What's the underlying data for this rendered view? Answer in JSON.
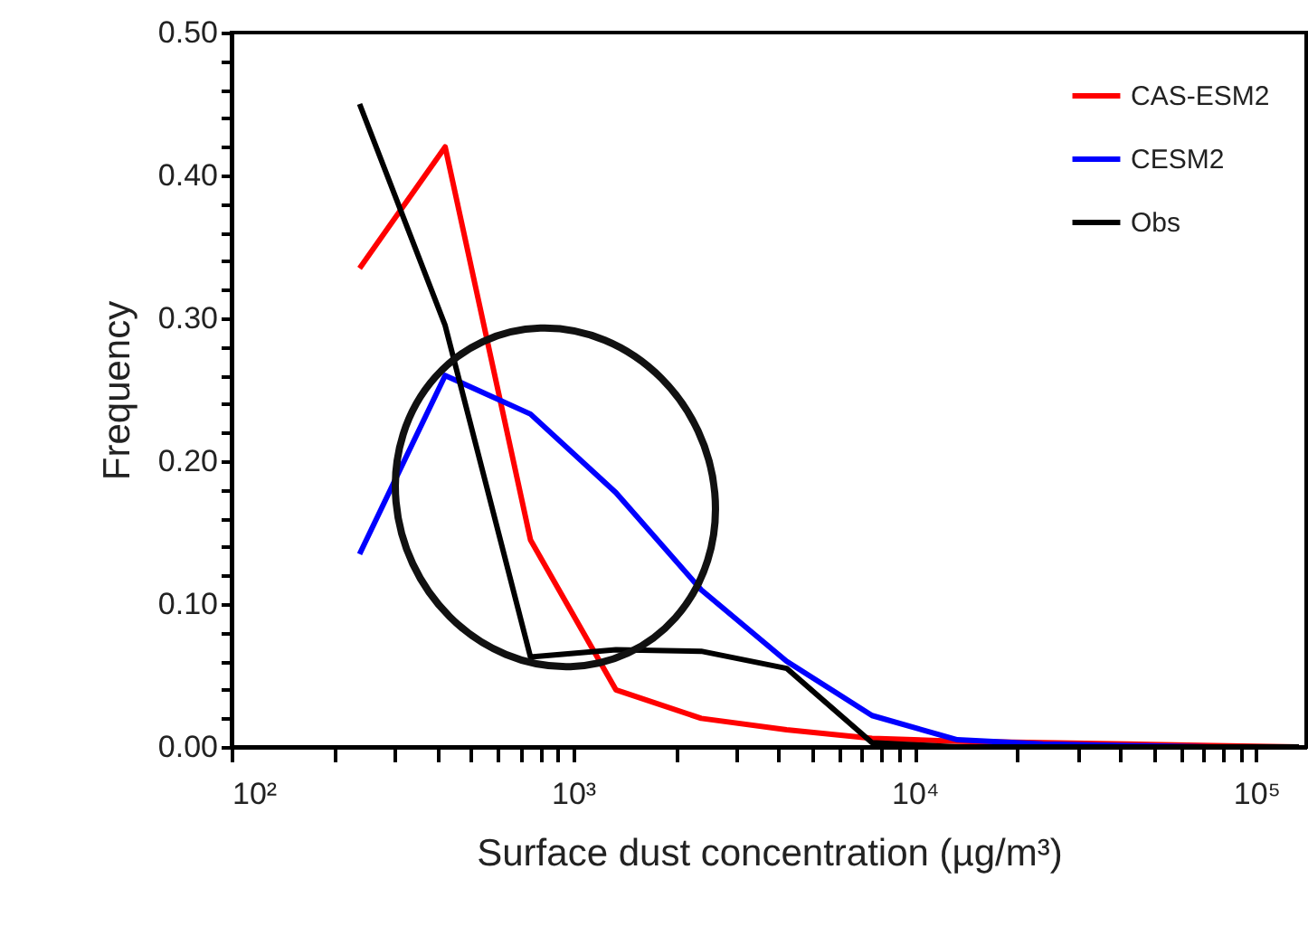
{
  "chart_data": {
    "type": "line",
    "xlabel": "Surface dust concentration (µg/m³)",
    "ylabel": "Frequency",
    "x": [
      237,
      422,
      750,
      1334,
      2371,
      4217,
      7499,
      13335,
      23714,
      42170,
      74989,
      133352
    ],
    "series": [
      {
        "name": "CAS-ESM2",
        "color": "#ff0000",
        "values": [
          0.335,
          0.42,
          0.145,
          0.04,
          0.02,
          0.012,
          0.006,
          0.004,
          0.003,
          0.002,
          0.001,
          0
        ]
      },
      {
        "name": "CESM2",
        "color": "#0000ff",
        "values": [
          0.135,
          0.26,
          0.233,
          0.178,
          0.11,
          0.06,
          0.022,
          0.005,
          0.002,
          0.001,
          0,
          0
        ]
      },
      {
        "name": "Obs",
        "color": "#000000",
        "values": [
          0.45,
          0.295,
          0.063,
          0.068,
          0.067,
          0.055,
          0.003,
          0,
          0,
          0,
          0,
          0
        ]
      }
    ],
    "log": "x",
    "xlim": [
      100,
      140000
    ],
    "ylim": [
      0,
      0.5
    ],
    "xticks": [
      {
        "value": 100,
        "label": "10²"
      },
      {
        "value": 200,
        "label": null
      },
      {
        "value": 300,
        "label": null
      },
      {
        "value": 400,
        "label": null
      },
      {
        "value": 500,
        "label": null
      },
      {
        "value": 600,
        "label": null
      },
      {
        "value": 700,
        "label": null
      },
      {
        "value": 800,
        "label": null
      },
      {
        "value": 900,
        "label": null
      },
      {
        "value": 1000,
        "label": "10³"
      },
      {
        "value": 2000,
        "label": null
      },
      {
        "value": 3000,
        "label": null
      },
      {
        "value": 4000,
        "label": null
      },
      {
        "value": 5000,
        "label": null
      },
      {
        "value": 6000,
        "label": null
      },
      {
        "value": 7000,
        "label": null
      },
      {
        "value": 8000,
        "label": null
      },
      {
        "value": 9000,
        "label": null
      },
      {
        "value": 10000,
        "label": "10⁴"
      },
      {
        "value": 20000,
        "label": null
      },
      {
        "value": 30000,
        "label": null
      },
      {
        "value": 40000,
        "label": null
      },
      {
        "value": 50000,
        "label": null
      },
      {
        "value": 60000,
        "label": null
      },
      {
        "value": 70000,
        "label": null
      },
      {
        "value": 80000,
        "label": null
      },
      {
        "value": 90000,
        "label": null
      },
      {
        "value": 100000,
        "label": "10⁵"
      }
    ],
    "yticks": [
      {
        "value": 0,
        "label": "0.00"
      },
      {
        "value": 0.02,
        "label": null
      },
      {
        "value": 0.04,
        "label": null
      },
      {
        "value": 0.06,
        "label": null
      },
      {
        "value": 0.08,
        "label": null
      },
      {
        "value": 0.1,
        "label": "0.10"
      },
      {
        "value": 0.12,
        "label": null
      },
      {
        "value": 0.14,
        "label": null
      },
      {
        "value": 0.16,
        "label": null
      },
      {
        "value": 0.18,
        "label": null
      },
      {
        "value": 0.2,
        "label": "0.20"
      },
      {
        "value": 0.22,
        "label": null
      },
      {
        "value": 0.24,
        "label": null
      },
      {
        "value": 0.26,
        "label": null
      },
      {
        "value": 0.28,
        "label": null
      },
      {
        "value": 0.3,
        "label": "0.30"
      },
      {
        "value": 0.32,
        "label": null
      },
      {
        "value": 0.34,
        "label": null
      },
      {
        "value": 0.36,
        "label": null
      },
      {
        "value": 0.38,
        "label": null
      },
      {
        "value": 0.4,
        "label": "0.40"
      },
      {
        "value": 0.42,
        "label": null
      },
      {
        "value": 0.44,
        "label": null
      },
      {
        "value": 0.46,
        "label": null
      },
      {
        "value": 0.48,
        "label": null
      },
      {
        "value": 0.5,
        "label": "0.50"
      }
    ],
    "grid": false,
    "legend": "top right"
  }
}
